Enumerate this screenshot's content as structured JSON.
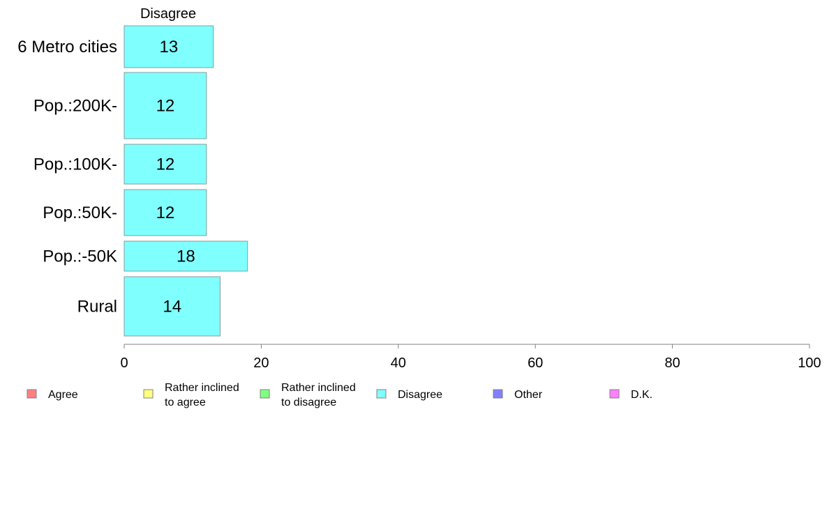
{
  "chart_data": {
    "type": "bar",
    "orientation": "horizontal",
    "categories": [
      "6 Metro cities",
      "Pop.:200K-",
      "Pop.:100K-",
      "Pop.:50K-",
      "Pop.:-50K",
      "Rural"
    ],
    "series": [
      {
        "name": "Disagree",
        "values": [
          13,
          12,
          12,
          12,
          18,
          14
        ],
        "color": "#80ffff"
      }
    ],
    "series_title": "Disagree",
    "xlim": [
      0,
      100
    ],
    "xticks": [
      0,
      20,
      40,
      60,
      80,
      100
    ],
    "grid": false,
    "legend": {
      "placement": "bottom",
      "items": [
        {
          "lines": [
            "Agree"
          ],
          "color": "#ff8080"
        },
        {
          "lines": [
            "Rather inclined",
            "to agree"
          ],
          "color": "#ffff80"
        },
        {
          "lines": [
            "Rather inclined",
            "to disagree"
          ],
          "color": "#80ff80"
        },
        {
          "lines": [
            "Disagree"
          ],
          "color": "#80ffff"
        },
        {
          "lines": [
            "Other"
          ],
          "color": "#8080ff"
        },
        {
          "lines": [
            "D.K."
          ],
          "color": "#ff80ff"
        }
      ]
    }
  }
}
